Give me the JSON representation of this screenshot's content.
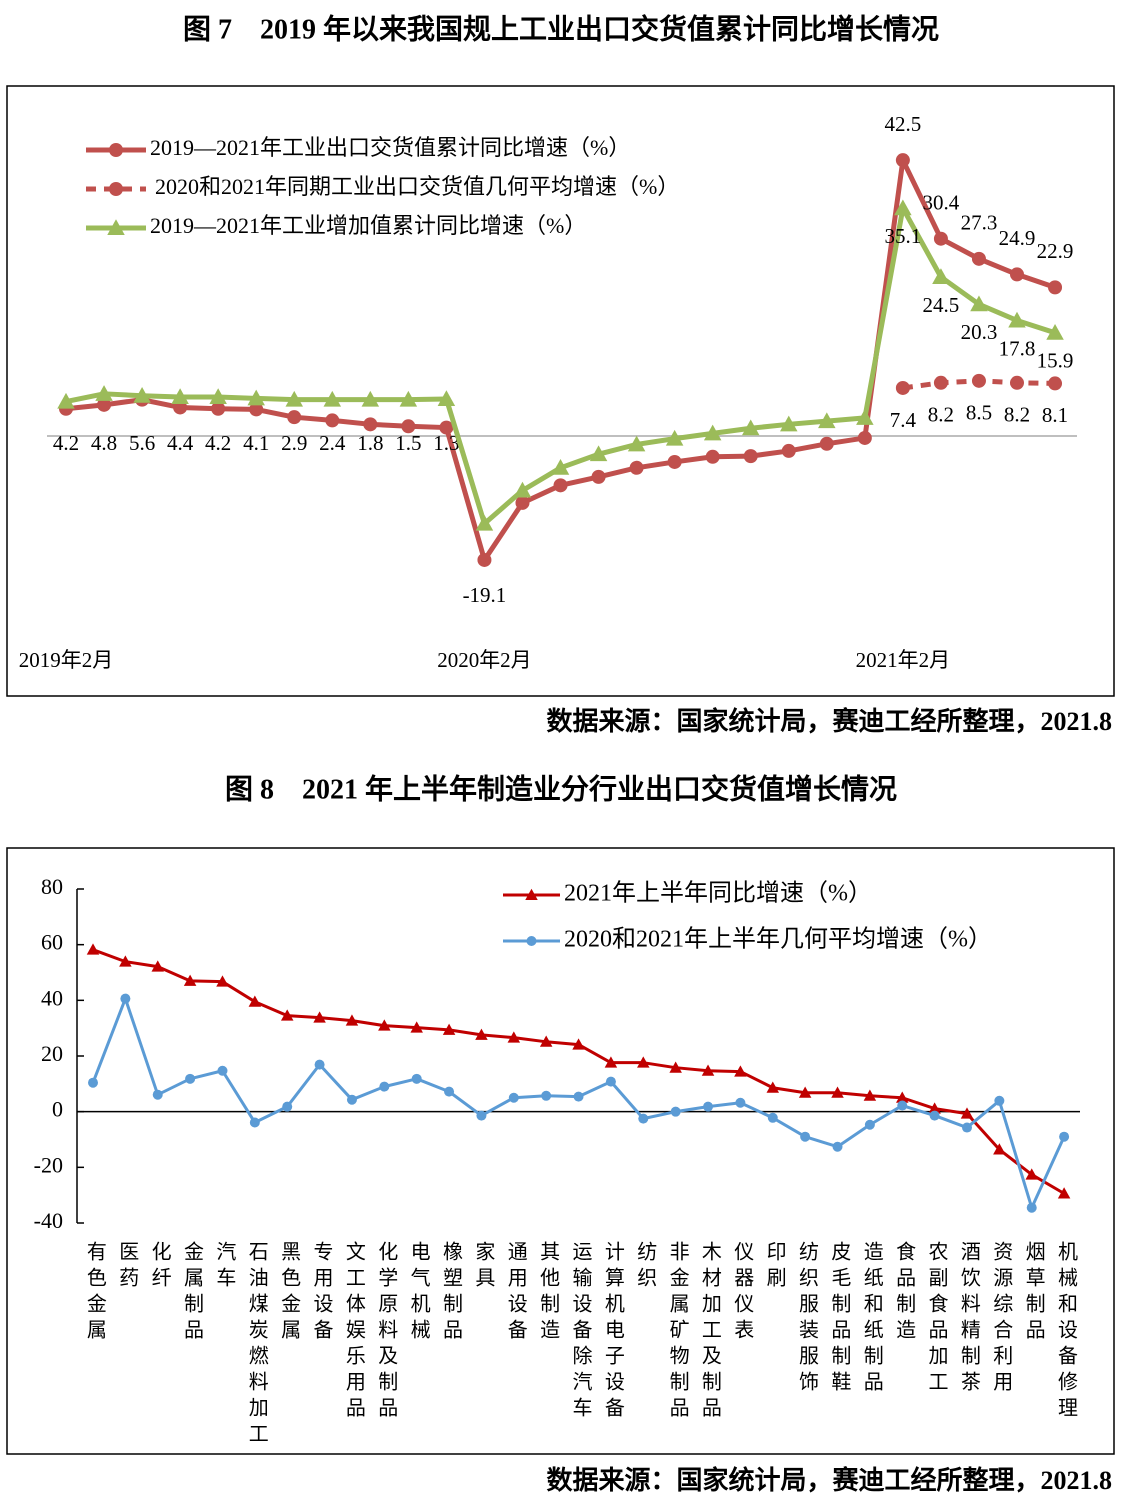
{
  "chart_data": [
    {
      "type": "line",
      "title": "图 7　2019 年以来我国规上工业出口交货值累计同比增长情况",
      "source": "数据来源：国家统计局，赛迪工经所整理，2021.8",
      "categories": [
        "2019年2月",
        null,
        null,
        null,
        null,
        null,
        null,
        null,
        null,
        null,
        null,
        "2020年2月",
        null,
        null,
        null,
        null,
        null,
        null,
        null,
        null,
        null,
        null,
        "2021年2月",
        null,
        null,
        null,
        null
      ],
      "ylim": [
        -30,
        50
      ],
      "series": [
        {
          "name": "2019—2021年工业出口交货值累计同比增速（%）",
          "color": "#c0504d",
          "marker": "circle",
          "dash": false,
          "values": [
            4.2,
            4.8,
            5.6,
            4.4,
            4.2,
            4.1,
            2.9,
            2.4,
            1.8,
            1.5,
            1.3,
            -19.1,
            -10.3,
            -7.6,
            -6.3,
            -4.9,
            -4.0,
            -3.2,
            -3.1,
            -2.3,
            -1.2,
            -0.3,
            42.5,
            30.4,
            27.3,
            24.9,
            22.9
          ],
          "value_labels": [
            "4.2",
            "4.8",
            "5.6",
            "4.4",
            "4.2",
            "4.1",
            "2.9",
            "2.4",
            "1.8",
            "1.5",
            "1.3",
            "-19.1",
            null,
            null,
            null,
            null,
            null,
            null,
            null,
            null,
            null,
            null,
            "42.5",
            "30.4",
            "27.3",
            "24.9",
            "22.9"
          ]
        },
        {
          "name": "2020和2021年同期工业出口交货值几何平均增速（%）",
          "color": "#c0504d",
          "marker": "circle",
          "dash": true,
          "values": [
            null,
            null,
            null,
            null,
            null,
            null,
            null,
            null,
            null,
            null,
            null,
            null,
            null,
            null,
            null,
            null,
            null,
            null,
            null,
            null,
            null,
            null,
            7.4,
            8.2,
            8.5,
            8.2,
            8.1
          ],
          "value_labels": [
            null,
            null,
            null,
            null,
            null,
            null,
            null,
            null,
            null,
            null,
            null,
            null,
            null,
            null,
            null,
            null,
            null,
            null,
            null,
            null,
            null,
            null,
            "7.4",
            "8.2",
            "8.5",
            "8.2",
            "8.1"
          ]
        },
        {
          "name": "2019—2021年工业增加值累计同比增速（%）",
          "color": "#9bbb59",
          "marker": "triangle",
          "dash": false,
          "values": [
            5.3,
            6.5,
            6.2,
            6.0,
            6.0,
            5.8,
            5.6,
            5.6,
            5.6,
            5.6,
            5.7,
            -13.5,
            -8.4,
            -4.9,
            -2.8,
            -1.3,
            -0.4,
            0.4,
            1.2,
            1.8,
            2.3,
            2.8,
            35.1,
            24.5,
            20.3,
            17.8,
            15.9
          ],
          "value_labels": [
            null,
            null,
            null,
            null,
            null,
            null,
            null,
            null,
            null,
            null,
            null,
            null,
            null,
            null,
            null,
            null,
            null,
            null,
            null,
            null,
            null,
            null,
            "35.1",
            "24.5",
            "20.3",
            "17.8",
            "15.9"
          ]
        }
      ]
    },
    {
      "type": "line",
      "title": "图 8　2021 年上半年制造业分行业出口交货值增长情况",
      "source": "数据来源：国家统计局，赛迪工经所整理，2021.8",
      "categories": [
        "有色金属",
        "医药",
        "化纤",
        "金属制品",
        "汽车",
        "石油煤炭燃料加工",
        "黑色金属",
        "专用设备",
        "文工体娱乐用品",
        "化学原料及制品",
        "电气机械",
        "橡塑制品",
        "家具",
        "通用设备",
        "其他制造",
        "运输设备除汽车",
        "计算机电子设备",
        "纺织",
        "非金属矿物制品",
        "木材加工及制品",
        "仪器仪表",
        "印刷",
        "纺织服装服饰",
        "皮毛制品制鞋",
        "造纸和纸制品",
        "食品制造",
        "农副食品加工",
        "酒饮料精制茶",
        "资源综合利用",
        "烟草制品",
        "机械和设备修理"
      ],
      "ylim": [
        -40,
        80
      ],
      "yticks": [
        -40,
        -20,
        0,
        20,
        40,
        60,
        80
      ],
      "series": [
        {
          "name": "2021年上半年同比增速（%）",
          "color": "#c00000",
          "marker": "triangle",
          "dash": false,
          "values": [
            58.2,
            53.9,
            52.1,
            47.0,
            46.7,
            39.5,
            34.5,
            33.8,
            32.7,
            30.9,
            30.2,
            29.4,
            27.6,
            26.6,
            25.1,
            24.1,
            17.6,
            17.6,
            15.8,
            14.7,
            14.4,
            8.6,
            6.8,
            6.8,
            5.7,
            5.0,
            1.1,
            -0.7,
            -13.6,
            -22.6,
            -29.4
          ]
        },
        {
          "name": "2020和2021年上半年几何平均增速（%）",
          "color": "#5b9bd5",
          "marker": "circle",
          "dash": false,
          "values": [
            10.4,
            40.6,
            6.1,
            11.8,
            14.7,
            -3.9,
            1.8,
            16.9,
            4.3,
            9.0,
            11.8,
            7.2,
            -1.4,
            5.0,
            5.7,
            5.4,
            10.8,
            -2.5,
            0,
            1.8,
            3.2,
            -2.2,
            -9.0,
            -12.6,
            -4.7,
            2.2,
            -1.4,
            -5.7,
            3.9,
            -34.5,
            -9.0
          ]
        }
      ]
    }
  ]
}
